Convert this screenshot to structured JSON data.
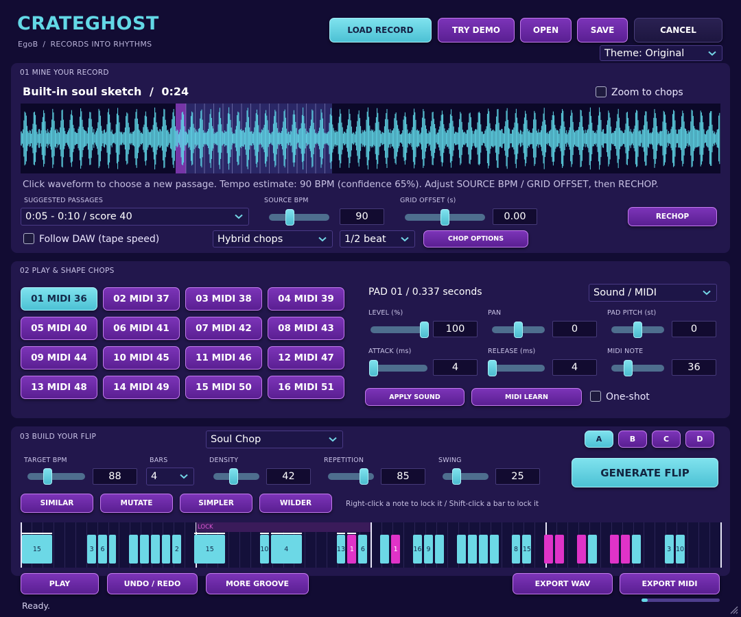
{
  "header": {
    "app_title": "CRATEGHOST",
    "breadcrumb_user": "EgoB",
    "breadcrumb_sep": "/",
    "breadcrumb_page": "RECORDS INTO RHYTHMS",
    "buttons": {
      "load_record": "LOAD RECORD",
      "try_demo": "TRY DEMO",
      "open": "OPEN",
      "save": "SAVE",
      "cancel": "CANCEL"
    },
    "theme_select": "Theme: Original"
  },
  "section1": {
    "label": "01  MINE YOUR RECORD",
    "track_title": "Built-in soul sketch",
    "track_sep": "/",
    "track_time": "0:24",
    "zoom_label": "Zoom to chops",
    "hint": "Click waveform to choose a new passage. Tempo estimate: 90 BPM (confidence 65%). Adjust SOURCE BPM / GRID OFFSET, then RECHOP.",
    "suggested_label": "SUGGESTED PASSAGES",
    "suggested_value": "0:05 - 0:10  /  score 40",
    "source_bpm_label": "SOURCE BPM",
    "source_bpm_value": "90",
    "source_bpm_level": 0.32,
    "grid_offset_label": "GRID OFFSET (s)",
    "grid_offset_value": "0.00",
    "grid_offset_level": 0.5,
    "rechop": "RECHOP",
    "follow_daw": "Follow DAW (tape speed)",
    "chop_mode": "Hybrid chops",
    "chop_division": "1/2 beat",
    "chop_options": "CHOP OPTIONS",
    "colors": {
      "wave": "#5fd6e6",
      "selection": "#8a3ab8"
    }
  },
  "section2": {
    "label": "02  PLAY & SHAPE CHOPS",
    "pads": [
      "01  MIDI 36",
      "02  MIDI 37",
      "03  MIDI 38",
      "04  MIDI 39",
      "05  MIDI 40",
      "06  MIDI 41",
      "07  MIDI 42",
      "08  MIDI 43",
      "09  MIDI 44",
      "10  MIDI 45",
      "11  MIDI 46",
      "12  MIDI 47",
      "13  MIDI 48",
      "14  MIDI 49",
      "15  MIDI 50",
      "16  MIDI 51"
    ],
    "active_pad": 0,
    "pad_info": "PAD 01  /  0.337 seconds",
    "output_select": "Sound / MIDI",
    "level_label": "LEVEL (%)",
    "level_value": "100",
    "level_level": 1.0,
    "pan_label": "PAN",
    "pan_value": "0",
    "pan_level": 0.5,
    "pitch_label": "PAD PITCH (st)",
    "pitch_value": "0",
    "pitch_level": 0.5,
    "attack_label": "ATTACK (ms)",
    "attack_value": "4",
    "attack_level": 0.0,
    "release_label": "RELEASE (ms)",
    "release_value": "4",
    "release_level": 0.0,
    "midi_note_label": "MIDI NOTE",
    "midi_note_value": "36",
    "midi_note_level": 0.28,
    "apply_sound": "APPLY SOUND",
    "midi_learn": "MIDI LEARN",
    "one_shot": "One-shot"
  },
  "section3": {
    "label": "03  BUILD YOUR FLIP",
    "style_select": "Soul Chop",
    "variations": [
      "A",
      "B",
      "C",
      "D"
    ],
    "active_variation": 0,
    "target_bpm_label": "TARGET BPM",
    "target_bpm_value": "88",
    "target_bpm_level": 0.32,
    "bars_label": "BARS",
    "bars_value": "4",
    "density_label": "DENSITY",
    "density_value": "42",
    "density_level": 0.42,
    "repetition_label": "REPETITION",
    "repetition_value": "85",
    "repetition_level": 0.85,
    "swing_label": "SWING",
    "swing_value": "25",
    "swing_level": 0.25,
    "generate": "GENERATE FLIP",
    "similar": "SIMILAR",
    "mutate": "MUTATE",
    "simpler": "SIMPLER",
    "wilder": "WILDER",
    "lock_hint": "Right-click a note to lock it  /  Shift-click a bar to lock it",
    "lock_tag": "LOCK",
    "steps": [
      "15",
      "",
      "",
      "",
      "3",
      "6",
      "",
      "",
      "",
      "",
      "",
      "",
      "2",
      "",
      "15",
      "",
      "",
      "",
      "10",
      "4",
      "",
      "",
      "",
      "13",
      "1",
      "6",
      "",
      "",
      "1",
      "",
      "16",
      "9",
      "",
      "",
      "",
      "",
      "",
      "",
      "",
      "8",
      "15",
      "",
      "",
      "",
      "",
      "",
      "",
      "",
      "",
      "",
      "",
      "",
      "",
      "3",
      "10"
    ],
    "step_colors": [
      "cyan-wide",
      "",
      "",
      "",
      "cyan",
      "cyan",
      "cyan-thin",
      "",
      "cyan",
      "cyan",
      "cyan",
      "cyan",
      "cyan",
      "",
      "cyan-wide",
      "",
      "",
      "",
      "cyan",
      "cyan-wide",
      "",
      "",
      "",
      "cyan",
      "magenta",
      "cyan",
      "",
      "cyan",
      "magenta",
      "",
      "cyan",
      "cyan",
      "cyan",
      "",
      "cyan",
      "cyan",
      "cyan",
      "cyan",
      "",
      "cyan",
      "cyan",
      "",
      "magenta",
      "magenta",
      "",
      "magenta",
      "cyan",
      "",
      "magenta",
      "magenta",
      "cyan",
      "",
      "",
      "cyan",
      "cyan"
    ]
  },
  "footer": {
    "play": "PLAY",
    "undo_redo": "UNDO / REDO",
    "more_groove": "MORE GROOVE",
    "export_wav": "EXPORT WAV",
    "export_midi": "EXPORT MIDI",
    "status": "Ready.",
    "progress": 0.08
  }
}
